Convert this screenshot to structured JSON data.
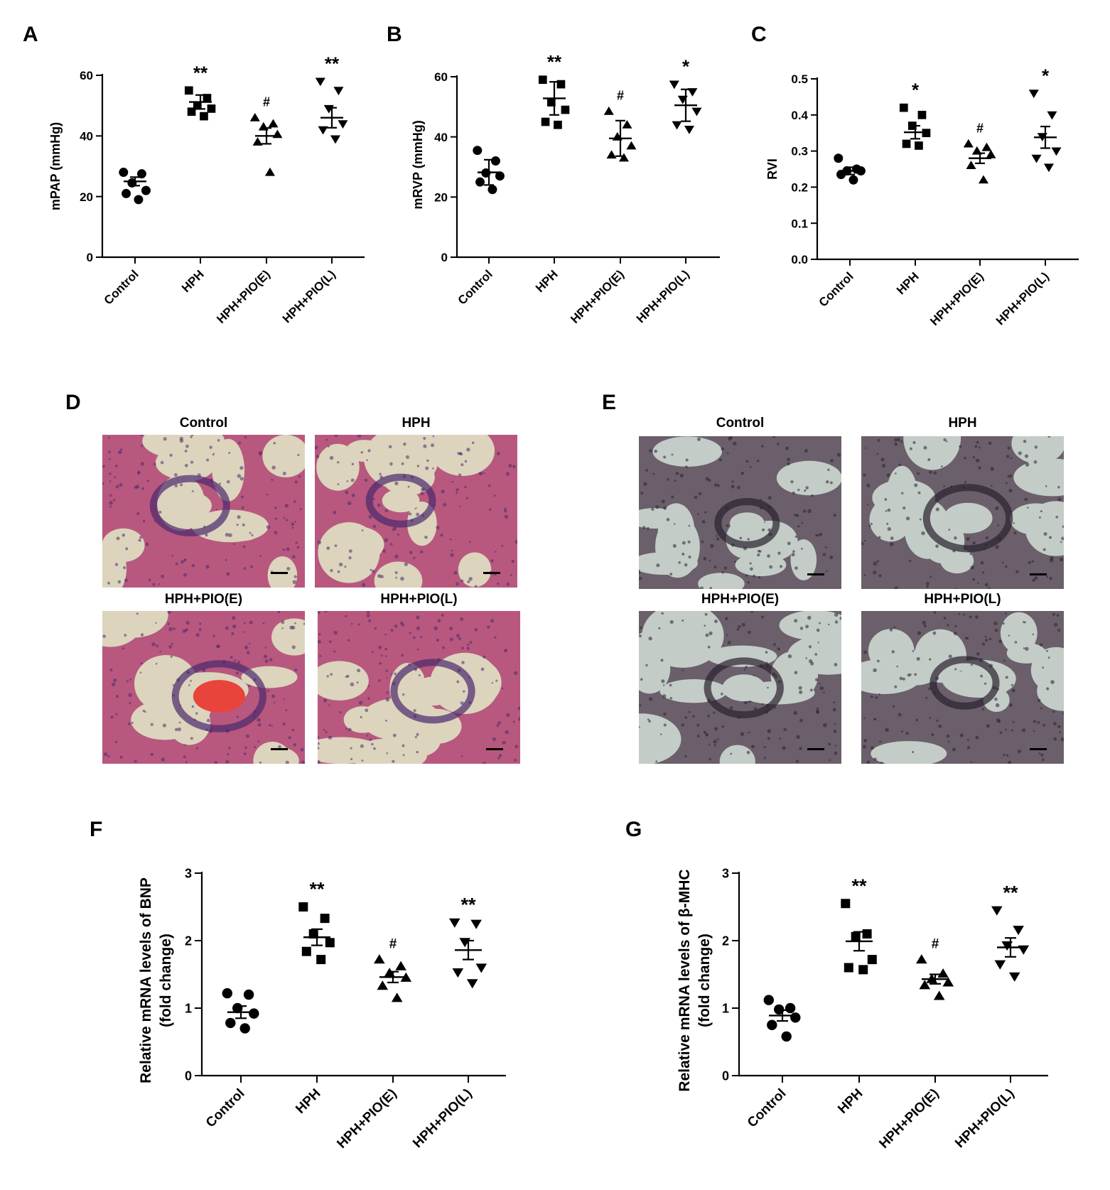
{
  "panels": {
    "A": "A",
    "B": "B",
    "C": "C",
    "D": "D",
    "E": "E",
    "F": "F",
    "G": "G"
  },
  "micrographs": {
    "D": {
      "stain": "H&E",
      "colors": {
        "bg": "#c9b5a6",
        "tissue": "#b8587e",
        "lumen": "#dcd4bd",
        "rbc": "#e8443c",
        "nuclei": "#4a2a6e"
      },
      "tiles": [
        {
          "title": "Control"
        },
        {
          "title": "HPH"
        },
        {
          "title": "HPH+PIO(E)"
        },
        {
          "title": "HPH+PIO(L)"
        }
      ]
    },
    "E": {
      "stain": "elastic",
      "colors": {
        "bg": "#b9c4bd",
        "tissue": "#6a5f6b",
        "lumen": "#c3ccc6",
        "rbc": "#8e8790",
        "nuclei": "#2a222e"
      },
      "tiles": [
        {
          "title": "Control"
        },
        {
          "title": "HPH"
        },
        {
          "title": "HPH+PIO(E)"
        },
        {
          "title": "HPH+PIO(L)"
        }
      ]
    }
  },
  "chart_data": [
    {
      "panel": "A",
      "type": "scatter",
      "categories": [
        "Control",
        "HPH",
        "HPH+PIO(E)",
        "HPH+PIO(L)"
      ],
      "markers": [
        "circle",
        "square",
        "triangle-up",
        "triangle-down"
      ],
      "ylabel": "mPAP (mmHg)",
      "ylim": [
        0,
        60
      ],
      "yticks": [
        0,
        20,
        40,
        60
      ],
      "groups": [
        {
          "points": [
            28,
            27.5,
            24.5,
            22,
            21,
            19
          ],
          "mean": 25,
          "sem": 1.4,
          "sig": ""
        },
        {
          "points": [
            55,
            52.5,
            50,
            49,
            48,
            46.5
          ],
          "mean": 51.2,
          "sem": 2.3,
          "sig": "**"
        },
        {
          "points": [
            46,
            44,
            43,
            40.5,
            38,
            28
          ],
          "mean": 40,
          "sem": 2.6,
          "sig": "#"
        },
        {
          "points": [
            58,
            55,
            49,
            44,
            42,
            39
          ],
          "mean": 46,
          "sem": 3.3,
          "sig": "**"
        }
      ]
    },
    {
      "panel": "B",
      "type": "scatter",
      "categories": [
        "Control",
        "HPH",
        "HPH+PIO(E)",
        "HPH+PIO(L)"
      ],
      "markers": [
        "circle",
        "square",
        "triangle-up",
        "triangle-down"
      ],
      "ylabel": "mRVP (mmHg)",
      "ylim": [
        0,
        60
      ],
      "yticks": [
        0,
        20,
        40,
        60
      ],
      "groups": [
        {
          "points": [
            35.5,
            32,
            28,
            27,
            25,
            22.5
          ],
          "mean": 28.2,
          "sem": 4.2,
          "sig": ""
        },
        {
          "points": [
            59,
            57.5,
            51.5,
            49,
            45,
            44
          ],
          "mean": 52.8,
          "sem": 5.5,
          "sig": "**"
        },
        {
          "points": [
            48.5,
            44,
            40,
            37,
            34,
            33
          ],
          "mean": 39.5,
          "sem": 5.9,
          "sig": "#"
        },
        {
          "points": [
            57.5,
            55,
            52.5,
            48.5,
            44,
            42.5
          ],
          "mean": 50.5,
          "sem": 5.3,
          "sig": "*"
        }
      ]
    },
    {
      "panel": "C",
      "type": "scatter",
      "categories": [
        "Control",
        "HPH",
        "HPH+PIO(E)",
        "HPH+PIO(L)"
      ],
      "markers": [
        "circle",
        "square",
        "triangle-up",
        "triangle-down"
      ],
      "ylabel": "RVI",
      "ylim": [
        0,
        0.5
      ],
      "yticks": [
        0.0,
        0.1,
        0.2,
        0.3,
        0.4,
        0.5
      ],
      "yticklabels": [
        "0.0",
        "0.1",
        "0.2",
        "0.3",
        "0.4",
        "0.5"
      ],
      "groups": [
        {
          "points": [
            0.28,
            0.25,
            0.245,
            0.245,
            0.235,
            0.22
          ],
          "mean": 0.245,
          "sem": 0.01,
          "sig": ""
        },
        {
          "points": [
            0.42,
            0.4,
            0.37,
            0.35,
            0.32,
            0.315
          ],
          "mean": 0.352,
          "sem": 0.018,
          "sig": "*"
        },
        {
          "points": [
            0.32,
            0.31,
            0.3,
            0.29,
            0.26,
            0.22
          ],
          "mean": 0.28,
          "sem": 0.014,
          "sig": "#"
        },
        {
          "points": [
            0.46,
            0.4,
            0.34,
            0.3,
            0.28,
            0.255
          ],
          "mean": 0.338,
          "sem": 0.03,
          "sig": "*"
        }
      ]
    },
    {
      "panel": "F",
      "type": "scatter",
      "categories": [
        "Control",
        "HPH",
        "HPH+PIO(E)",
        "HPH+PIO(L)"
      ],
      "markers": [
        "circle",
        "square",
        "triangle-up",
        "triangle-down"
      ],
      "ylabel": "Relative mRNA levels of BNP",
      "ylabel2": "(fold change)",
      "ylim": [
        0,
        3
      ],
      "yticks": [
        0,
        1,
        2,
        3
      ],
      "groups": [
        {
          "points": [
            1.22,
            1.2,
            1.0,
            0.92,
            0.78,
            0.7
          ],
          "mean": 0.94,
          "sem": 0.09,
          "sig": ""
        },
        {
          "points": [
            2.5,
            2.33,
            2.1,
            1.97,
            1.84,
            1.72
          ],
          "mean": 2.05,
          "sem": 0.12,
          "sig": "**"
        },
        {
          "points": [
            1.72,
            1.62,
            1.52,
            1.45,
            1.33,
            1.15
          ],
          "mean": 1.46,
          "sem": 0.08,
          "sig": "#"
        },
        {
          "points": [
            2.27,
            2.25,
            1.98,
            1.6,
            1.53,
            1.37
          ],
          "mean": 1.86,
          "sem": 0.14,
          "sig": "**"
        }
      ]
    },
    {
      "panel": "G",
      "type": "scatter",
      "categories": [
        "Control",
        "HPH",
        "HPH+PIO(E)",
        "HPH+PIO(L)"
      ],
      "markers": [
        "circle",
        "square",
        "triangle-up",
        "triangle-down"
      ],
      "ylabel": "Relative mRNA levels of β-MHC",
      "ylabel2": "(fold change)",
      "ylim": [
        0,
        3
      ],
      "yticks": [
        0,
        1,
        2,
        3
      ],
      "groups": [
        {
          "points": [
            1.12,
            1.0,
            0.98,
            0.86,
            0.75,
            0.58
          ],
          "mean": 0.89,
          "sem": 0.08,
          "sig": ""
        },
        {
          "points": [
            2.55,
            2.1,
            2.06,
            1.72,
            1.6,
            1.57
          ],
          "mean": 1.99,
          "sem": 0.14,
          "sig": "**"
        },
        {
          "points": [
            1.72,
            1.51,
            1.43,
            1.38,
            1.34,
            1.18
          ],
          "mean": 1.43,
          "sem": 0.07,
          "sig": "#"
        },
        {
          "points": [
            2.45,
            2.16,
            1.93,
            1.87,
            1.65,
            1.47
          ],
          "mean": 1.9,
          "sem": 0.14,
          "sig": "**"
        }
      ]
    }
  ]
}
